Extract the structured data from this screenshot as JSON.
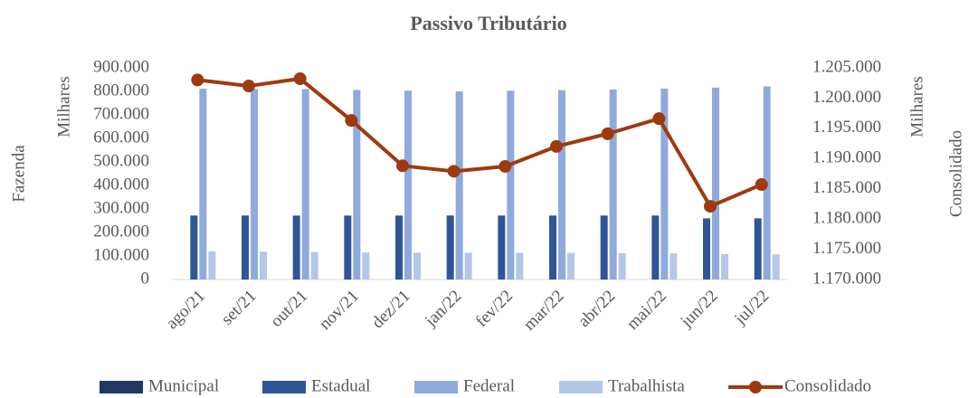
{
  "chart_data": {
    "type": "bar",
    "title": "Passivo Tributário",
    "y_label": "Fazenda",
    "y_unit": "Milhares",
    "y2_label": "Consolidado",
    "y2_unit": "Milhares",
    "categories": [
      "ago/21",
      "set/21",
      "out/21",
      "nov/21",
      "dez/21",
      "jan/22",
      "fev/22",
      "mar/22",
      "abr/22",
      "mai/22",
      "jun/22",
      "jul/22"
    ],
    "series": [
      {
        "name": "Municipal",
        "color": "#1f3864",
        "values": [
          0,
          0,
          0,
          0,
          0,
          0,
          0,
          0,
          0,
          0,
          0,
          0
        ]
      },
      {
        "name": "Estadual",
        "color": "#2f5597",
        "values": [
          272000,
          272000,
          272000,
          272000,
          272000,
          272000,
          272000,
          272000,
          272000,
          272000,
          260000,
          260000
        ]
      },
      {
        "name": "Federal",
        "color": "#8faadc",
        "values": [
          811000,
          810000,
          810000,
          806000,
          803000,
          800000,
          803000,
          805000,
          808000,
          812000,
          816000,
          821000
        ]
      },
      {
        "name": "Trabalhista",
        "color": "#b4c7e7",
        "values": [
          120000,
          118000,
          117000,
          115000,
          114000,
          114000,
          114000,
          113000,
          112000,
          111000,
          108000,
          107000
        ]
      },
      {
        "name": "Consolidado",
        "color": "#9e3a0e",
        "type": "line",
        "axis": "y2",
        "values": [
          1203000,
          1202000,
          1203200,
          1196300,
          1188800,
          1187900,
          1188700,
          1192000,
          1194100,
          1196600,
          1182100,
          1185700
        ]
      }
    ],
    "ylim": [
      0,
      900000
    ],
    "yticks": [
      0,
      {
        "value": 100000,
        "label": "100.000"
      },
      {
        "value": 200000,
        "label": "200.000"
      },
      {
        "value": 300000,
        "label": "300.000"
      },
      {
        "value": 400000,
        "label": "400.000"
      },
      {
        "value": 500000,
        "label": "500.000"
      },
      {
        "value": 600000,
        "label": "600.000"
      },
      {
        "value": 700000,
        "label": "700.000"
      },
      {
        "value": 800000,
        "label": "800.000"
      },
      {
        "value": 900000,
        "label": "900.000"
      }
    ],
    "y2lim": [
      1170000,
      1205000
    ],
    "y2ticks": [
      {
        "value": 1170000,
        "label": "1.170.000"
      },
      {
        "value": 1175000,
        "label": "1.175.000"
      },
      {
        "value": 1180000,
        "label": "1.180.000"
      },
      {
        "value": 1185000,
        "label": "1.185.000"
      },
      {
        "value": 1190000,
        "label": "1.190.000"
      },
      {
        "value": 1195000,
        "label": "1.195.000"
      },
      {
        "value": 1200000,
        "label": "1.200.000"
      },
      {
        "value": 1205000,
        "label": "1.205.000"
      }
    ],
    "grid": false,
    "legend": "bottom"
  }
}
